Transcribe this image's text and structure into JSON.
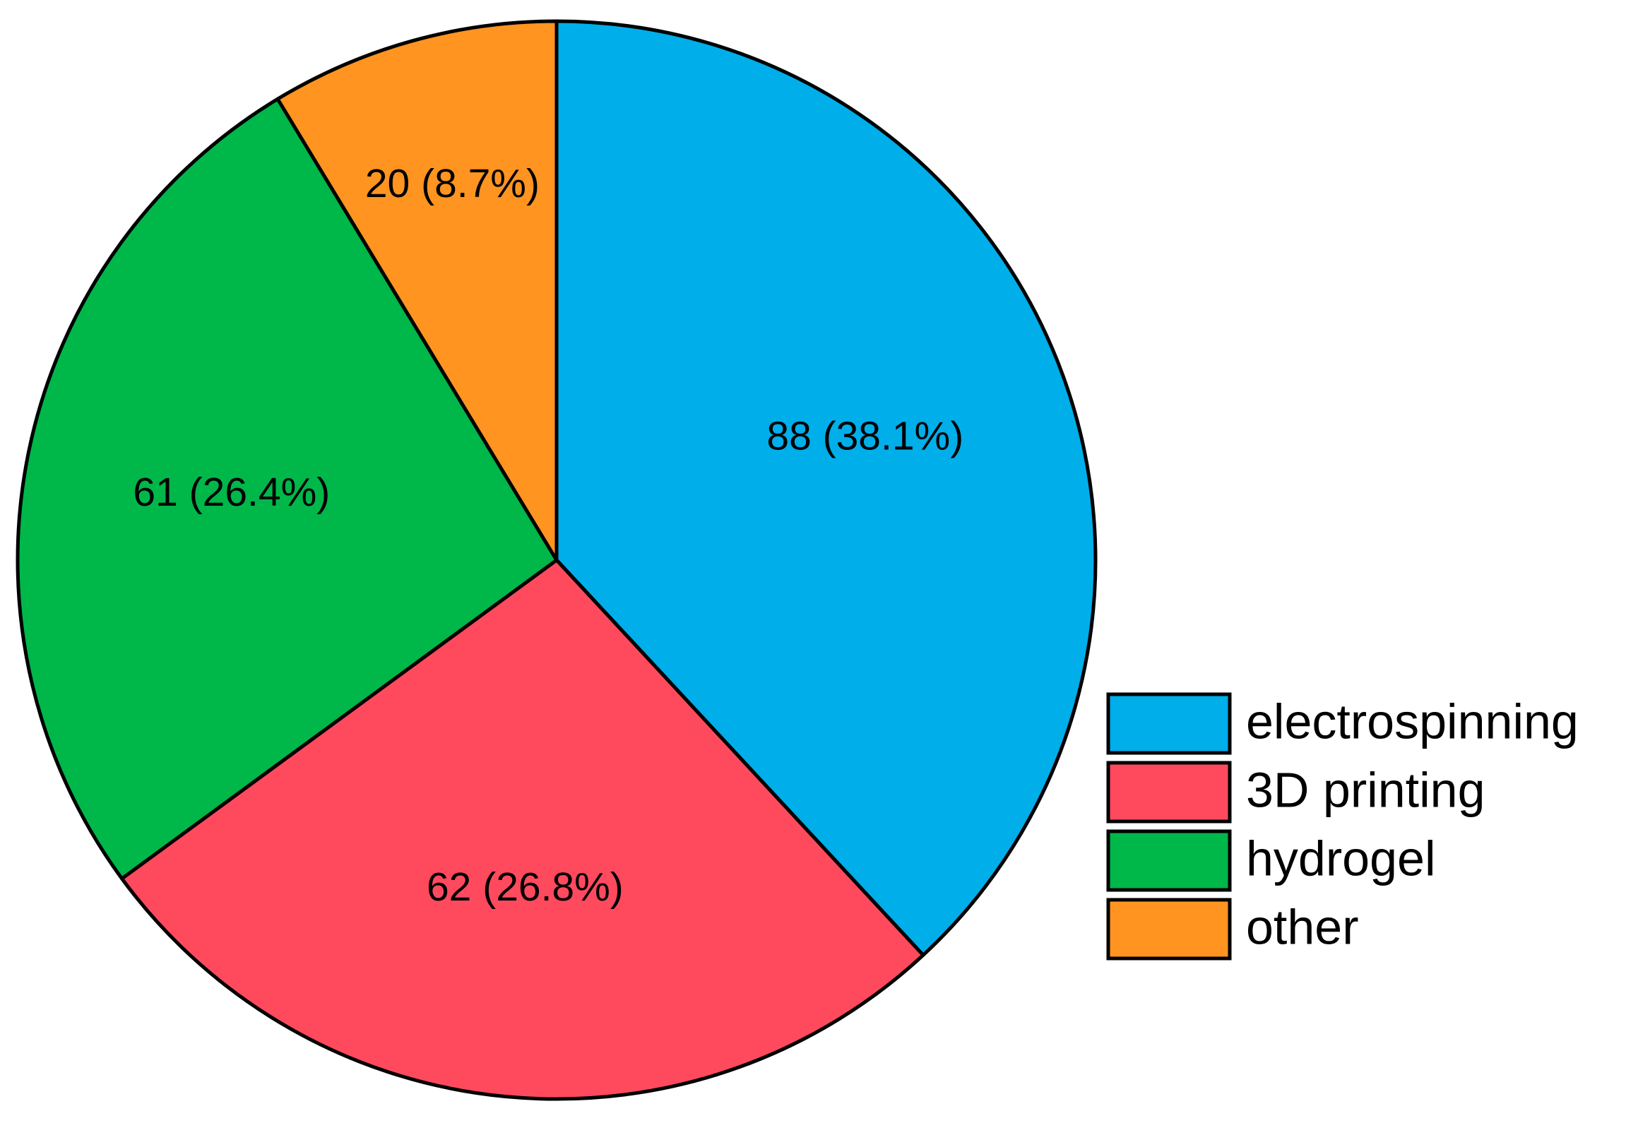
{
  "chart_data": {
    "type": "pie",
    "categories": [
      "electrospinning",
      "3D printing",
      "hydrogel",
      "other"
    ],
    "values": [
      88,
      62,
      61,
      20
    ],
    "value_labels": [
      "88 (38.1%)",
      "62 (26.8%)",
      "61 (26.4%)",
      "20 (8.7%)"
    ],
    "colors": [
      "#00aeea",
      "#ff4a5e",
      "#00b74a",
      "#ff9421"
    ]
  }
}
